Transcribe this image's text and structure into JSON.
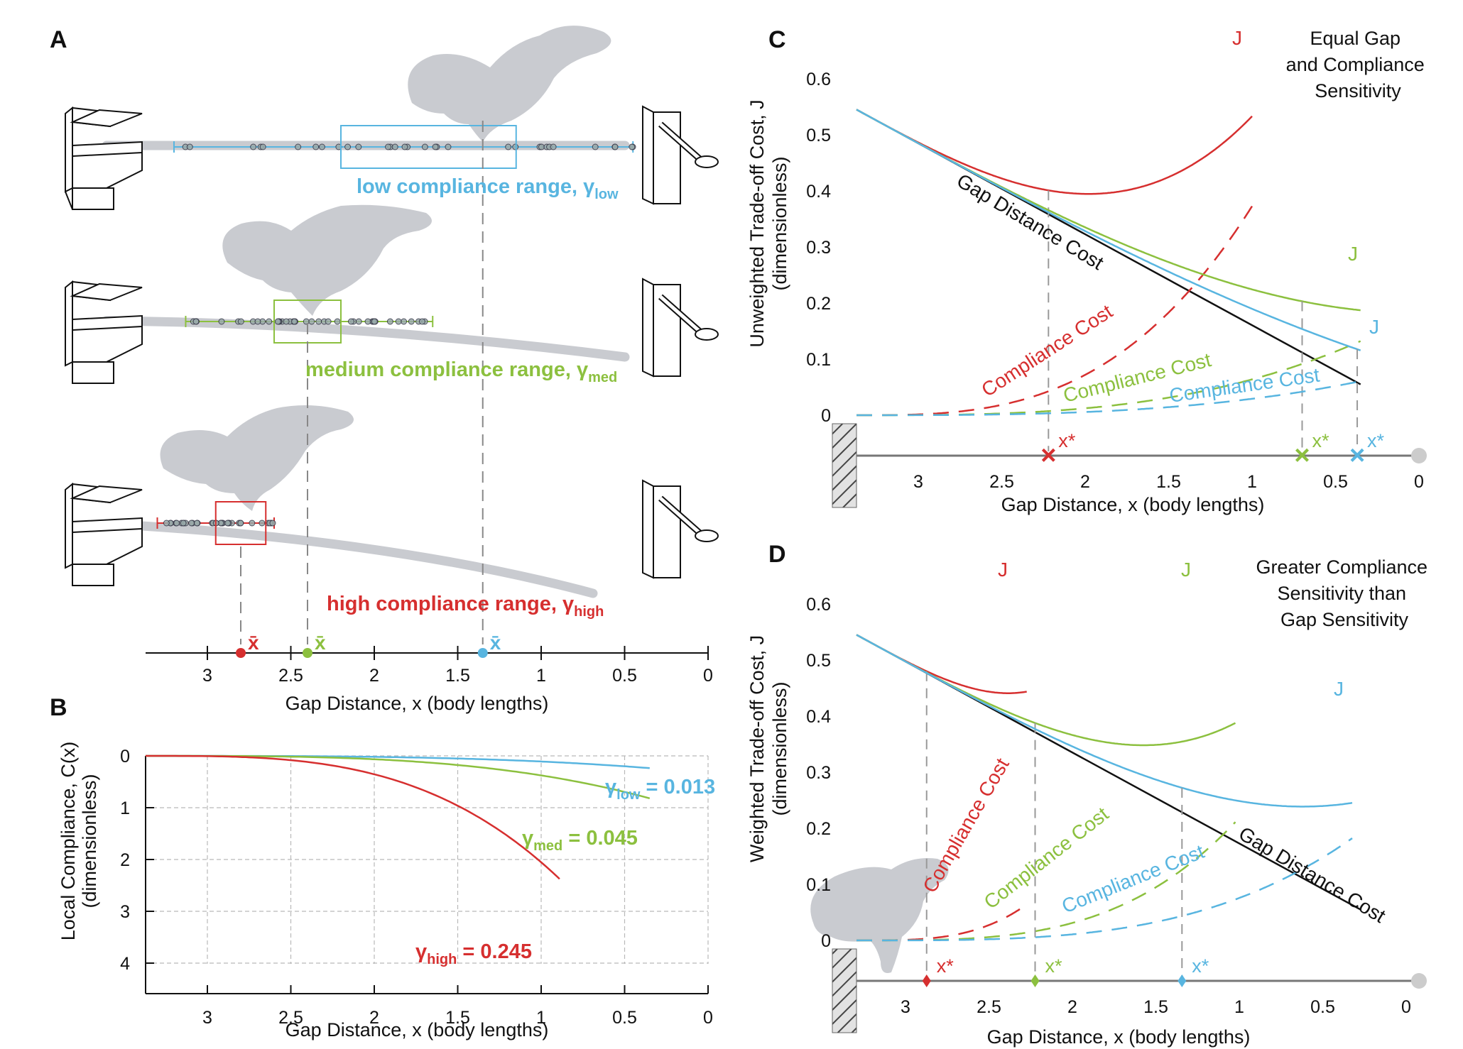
{
  "colors": {
    "red": "#d62f2f",
    "green": "#8cc03f",
    "blue": "#58b5e0",
    "black": "#111111",
    "gray": "#c9cbd0"
  },
  "panels": {
    "a": "A",
    "b": "B",
    "c": "C",
    "d": "D"
  },
  "panel_a": {
    "ranges": [
      {
        "text": "low compliance range, ",
        "symbol": "γ",
        "sub": "low",
        "color": "blue"
      },
      {
        "text": "medium compliance range, ",
        "symbol": "γ",
        "sub": "med",
        "color": "green"
      },
      {
        "text": "high compliance range, ",
        "symbol": "γ",
        "sub": "high",
        "color": "red"
      }
    ],
    "mean_label": "x̄",
    "xbar": {
      "red": 2.8,
      "green": 2.4,
      "blue": 1.35
    },
    "ticks": [
      "3",
      "2.5",
      "2",
      "1.5",
      "1",
      "0.5",
      "0"
    ],
    "xlabel": "Gap Distance, x (body lengths)"
  },
  "chart_data": [
    {
      "id": "B",
      "type": "line",
      "xlabel": "Gap Distance, x (body lengths)",
      "ylabel": "Local Compliance, C(x)",
      "ylabel2": "(dimensionless)",
      "xlim": [
        3.37,
        0
      ],
      "ylim": [
        0,
        4.2
      ],
      "xticks": [
        "3",
        "2.5",
        "2",
        "1.5",
        "1",
        "0.5",
        "0"
      ],
      "yticks": [
        "0",
        "1",
        "2",
        "3",
        "4"
      ],
      "grid": true,
      "series": [
        {
          "name": "γlow = 0.013",
          "symbol": "γ",
          "sub": "low",
          "value": " = 0.013",
          "color": "blue",
          "gamma": 0.013,
          "x_end": 0.35
        },
        {
          "name": "γmed = 0.045",
          "symbol": "γ",
          "sub": "med",
          "value": " = 0.045",
          "color": "green",
          "gamma": 0.045,
          "x_end": 0.35
        },
        {
          "name": "γhigh = 0.245",
          "symbol": "γ",
          "sub": "high",
          "value": " = 0.245",
          "color": "red",
          "gamma": 0.245,
          "x_end": 0.88
        }
      ]
    },
    {
      "id": "C",
      "type": "line",
      "note": "Equal Gap and Compliance Sensitivity",
      "note_lines": [
        "Equal Gap",
        "and Compliance",
        "Sensitivity"
      ],
      "xlabel": "Gap Distance, x (body lengths)",
      "ylabel": "Unweighted Trade-off Cost, J",
      "ylabel2": "(dimensionless)",
      "xlim": [
        3.37,
        0
      ],
      "ylim": [
        0,
        0.65
      ],
      "xticks": [
        "3",
        "2.5",
        "2",
        "1.5",
        "1",
        "0.5",
        "0"
      ],
      "yticks": [
        "0",
        "0.1",
        "0.2",
        "0.3",
        "0.4",
        "0.5",
        "0.6"
      ],
      "gap_label": "Gap Distance Cost",
      "compliance_label": "Compliance Cost",
      "j_label": "J",
      "opt_label": "x*",
      "gap_cost": [
        [
          3.37,
          0.545
        ],
        [
          0.35,
          0.055
        ]
      ],
      "optima": {
        "red": 2.22,
        "green": 0.7,
        "blue": 0.37
      }
    },
    {
      "id": "D",
      "type": "line",
      "note": "Greater Compliance Sensitivity than Gap Sensitivity",
      "note_lines": [
        "Greater Compliance",
        "Sensitivity than",
        "Gap Sensitivity"
      ],
      "xlabel": "Gap Distance, x (body lengths)",
      "ylabel": "Weighted Trade-off Cost, J",
      "ylabel2": "(dimensionless)",
      "xlim": [
        3.37,
        0
      ],
      "ylim": [
        0,
        0.65
      ],
      "xticks": [
        "3",
        "2.5",
        "2",
        "1.5",
        "1",
        "0.5",
        "0"
      ],
      "yticks": [
        "0",
        "0.1",
        "0.2",
        "0.3",
        "0.4",
        "0.5",
        "0.6"
      ],
      "gap_label": "Gap Distance Cost",
      "compliance_label": "Compliance Cost",
      "j_label": "J",
      "opt_label": "x*",
      "gap_cost": [
        [
          3.37,
          0.545
        ],
        [
          0.35,
          0.055
        ]
      ],
      "optima": {
        "red": 2.95,
        "green": 2.3,
        "blue": 1.42
      }
    }
  ]
}
